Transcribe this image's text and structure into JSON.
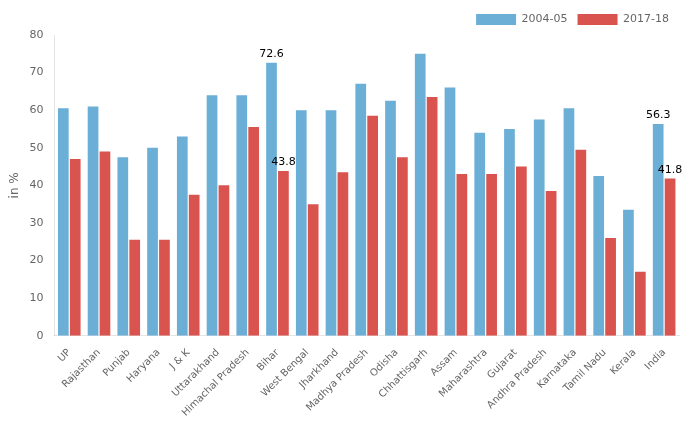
{
  "chart_data": {
    "type": "bar",
    "categories": [
      "UP",
      "Rajasthan",
      "Punjab",
      "Haryana",
      "J & K",
      "Uttarakhand",
      "Himachal Pradesh",
      "Bihar",
      "West Bengal",
      "Jharkhand",
      "Madhya Pradesh",
      "Odisha",
      "Chhattisgarh",
      "Assam",
      "Maharashtra",
      "Gujarat",
      "Andhra Pradesh",
      "Karnataka",
      "Tamil Nadu",
      "Kerala",
      "India"
    ],
    "series": [
      {
        "name": "2004-05",
        "color": "#6BAED6",
        "values": [
          60.5,
          61.0,
          47.5,
          50.0,
          53.0,
          64.0,
          64.0,
          72.6,
          60.0,
          60.0,
          67.0,
          62.5,
          75.0,
          66.0,
          54.0,
          55.0,
          57.5,
          60.5,
          42.5,
          33.5,
          56.3
        ]
      },
      {
        "name": "2017-18",
        "color": "#D9534F",
        "values": [
          47.0,
          49.0,
          25.5,
          25.5,
          37.5,
          40.0,
          55.5,
          43.8,
          35.0,
          43.5,
          58.5,
          47.5,
          63.5,
          43.0,
          43.0,
          45.0,
          38.5,
          49.5,
          26.0,
          17.0,
          41.8
        ]
      }
    ],
    "ylabel": "in %",
    "ylim": [
      0,
      80
    ],
    "yticks": [
      0,
      10,
      20,
      30,
      40,
      50,
      60,
      70,
      80
    ],
    "grid": false,
    "legend": "upper right",
    "annotations": [
      {
        "category": "Bihar",
        "series": "2004-05",
        "text": "72.6"
      },
      {
        "category": "Bihar",
        "series": "2017-18",
        "text": "43.8"
      },
      {
        "category": "India",
        "series": "2004-05",
        "text": "56.3"
      },
      {
        "category": "India",
        "series": "2017-18",
        "text": "41.8"
      }
    ]
  }
}
